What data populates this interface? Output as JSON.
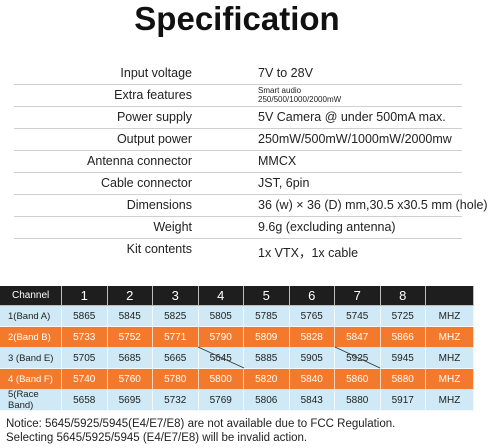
{
  "title": "Specification",
  "spec": {
    "rows": [
      [
        "Input voltage",
        "7V to 28V"
      ],
      [
        "Extra features",
        "Smart audio",
        "250/500/1000/2000mW"
      ],
      [
        "Power supply",
        "5V Camera @ under 500mA max."
      ],
      [
        "Output power",
        "250mW/500mW/1000mW/2000mw"
      ],
      [
        "Antenna connector",
        "MMCX"
      ],
      [
        "Cable connector",
        "JST, 6pin"
      ],
      [
        "Dimensions",
        "36 (w) × 36 (D) mm,30.5 x30.5 mm (hole)"
      ],
      [
        "Weight",
        "9.6g (excluding antenna)"
      ],
      [
        "Kit contents",
        "1x VTX，1x cable"
      ]
    ]
  },
  "channels": {
    "header": [
      "Channel",
      "1",
      "2",
      "3",
      "4",
      "5",
      "6",
      "7",
      "8"
    ],
    "rows": [
      [
        "1(Band A)",
        5865,
        5845,
        5825,
        5805,
        5785,
        5765,
        5745,
        5725,
        "MHZ"
      ],
      [
        "2(Band B)",
        5733,
        5752,
        5771,
        5790,
        5809,
        5828,
        5847,
        5866,
        "MHZ"
      ],
      [
        "3 (Band E)",
        5705,
        5685,
        5665,
        5645,
        5885,
        5905,
        5925,
        5945,
        "MHZ"
      ],
      [
        "4 (Band F)",
        5740,
        5760,
        5780,
        5800,
        5820,
        5840,
        5860,
        5880,
        "MHZ"
      ],
      [
        "5(Race Band)",
        5658,
        5695,
        5732,
        5769,
        5806,
        5843,
        5880,
        5917,
        "MHZ"
      ]
    ]
  },
  "notice": [
    "Notice: 5645/5925/5945(E4/E7/E8) are not available due to FCC Regulation.",
    "Selecting 5645/5925/5945 (E4/E7/E8) will be invalid action."
  ]
}
